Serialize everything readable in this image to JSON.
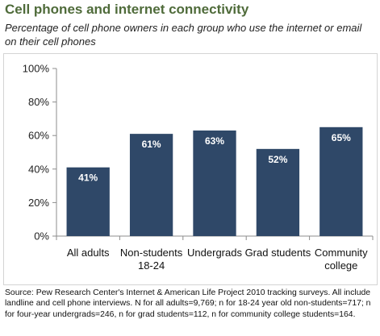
{
  "title": "Cell phones and internet connectivity",
  "subtitle": "Percentage of cell phone owners in each group who use the internet or email on their cell phones",
  "source": "Source: Pew Research Center's Internet & American Life Project 2010 tracking surveys. All include landline and cell phone interviews. N for all adults=9,769; n for 18-24 year old non-students=717; n for four-year undergrads=246, n for grad students=112, n for community college students=164.",
  "chart_data": {
    "type": "bar",
    "categories": [
      [
        "All adults"
      ],
      [
        "Non-students",
        "18-24"
      ],
      [
        "Undergrads"
      ],
      [
        "Grad students"
      ],
      [
        "Community",
        "college"
      ]
    ],
    "values": [
      41,
      61,
      63,
      52,
      65
    ],
    "data_labels": [
      "41%",
      "61%",
      "63%",
      "52%",
      "65%"
    ],
    "ylim": [
      0,
      100
    ],
    "yticks": [
      0,
      20,
      40,
      60,
      80,
      100
    ],
    "ytick_labels": [
      "0%",
      "20%",
      "40%",
      "60%",
      "80%",
      "100%"
    ],
    "grid": false,
    "bar_color": "#2f4868",
    "label_color": "#ffffff"
  }
}
